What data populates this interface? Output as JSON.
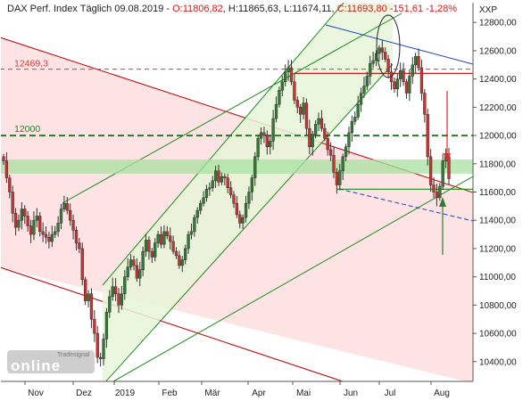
{
  "header": {
    "name": "DAX Perf. Index",
    "period": "Täglich",
    "date": "09.08.2019",
    "open": "O:11806,82",
    "high": "H:11865,63",
    "low": "L:11674,11",
    "close": "C:11693,80",
    "change": "-151,61",
    "change_pct": "-1,28%"
  },
  "axis_unit": "XXP",
  "watermark": {
    "top": "Tradesignal",
    "bottom": "online"
  },
  "colors": {
    "up": "#2e7d32",
    "down": "#d32f2f",
    "red_channel": "#c00000",
    "green_line": "#1a8c1a",
    "blue_line": "#1f3fbf",
    "level_12000": "#2a7a2a",
    "level_12469": "#d04040",
    "support_band": "#a8e0a0"
  },
  "chart_data": {
    "type": "candlestick",
    "title": "DAX Perf. Index Täglich 09.08.2019",
    "x_tick_labels": [
      "Nov",
      "Dez",
      "2019",
      "Feb",
      "Mär",
      "Apr",
      "Mai",
      "Jun",
      "Jul",
      "Aug"
    ],
    "y_tick_labels": [
      "10400,00",
      "10600,00",
      "10800,00",
      "11000,00",
      "11200,00",
      "11400,00",
      "11600,00",
      "11800,00",
      "12000,00",
      "12200,00",
      "12400,00",
      "12600,00",
      "12800,00"
    ],
    "y_ticks": [
      10400,
      10600,
      10800,
      11000,
      11200,
      11400,
      11600,
      11800,
      12000,
      12200,
      12400,
      12600,
      12800
    ],
    "ylim": [
      10260,
      12940
    ],
    "grid": false,
    "levels": [
      {
        "label": "12469,3",
        "value": 12469.3,
        "style": "dashed-red"
      },
      {
        "label": "12000",
        "value": 12000,
        "style": "dashed-green"
      },
      {
        "label": "",
        "value": 12440,
        "style": "solid-red"
      }
    ],
    "support_zone": [
      11730,
      11830
    ],
    "closes": [
      11820,
      11700,
      11600,
      11450,
      11350,
      11400,
      11480,
      11430,
      11360,
      11300,
      11400,
      11430,
      11320,
      11300,
      11280,
      11250,
      11300,
      11320,
      11380,
      11480,
      11520,
      11470,
      11400,
      11330,
      11240,
      11200,
      10980,
      10830,
      10880,
      10700,
      10600,
      10430,
      10420,
      10560,
      10750,
      10860,
      10930,
      10880,
      10800,
      10880,
      11000,
      11070,
      11120,
      11080,
      10990,
      11050,
      11180,
      11260,
      11180,
      11140,
      11240,
      11300,
      11230,
      11320,
      11290,
      11250,
      11180,
      11150,
      11080,
      11120,
      11200,
      11300,
      11320,
      11420,
      11470,
      11520,
      11560,
      11620,
      11630,
      11680,
      11750,
      11670,
      11710,
      11700,
      11630,
      11580,
      11520,
      11440,
      11380,
      11420,
      11520,
      11600,
      11700,
      11850,
      11980,
      12020,
      12000,
      11920,
      11960,
      12120,
      12220,
      12320,
      12380,
      12450,
      12480,
      12380,
      12250,
      12200,
      12150,
      12230,
      12050,
      11920,
      12010,
      12080,
      12120,
      12050,
      11980,
      11900,
      11860,
      11740,
      11650,
      11750,
      11850,
      11920,
      12020,
      12100,
      12130,
      12220,
      12300,
      12350,
      12420,
      12510,
      12530,
      12580,
      12620,
      12590,
      12540,
      12450,
      12380,
      12330,
      12400,
      12460,
      12380,
      12300,
      12420,
      12500,
      12560,
      12480,
      12300,
      12150,
      11850,
      11650,
      11600,
      11560,
      11640,
      11820,
      11850,
      11694
    ]
  }
}
